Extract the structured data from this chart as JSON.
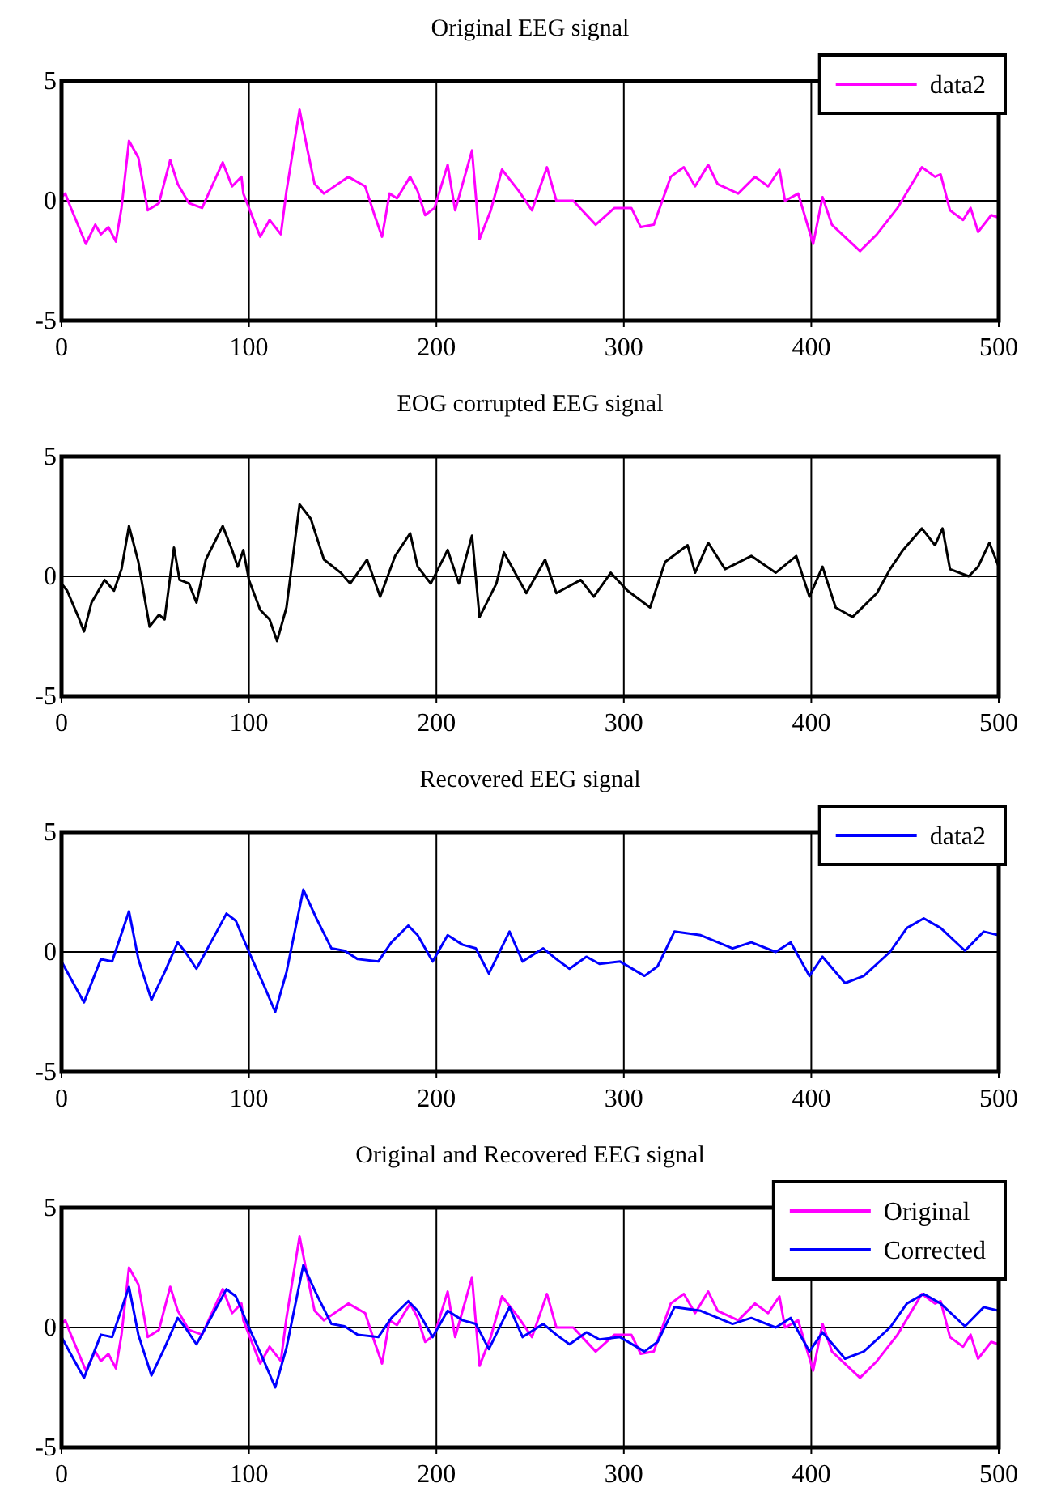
{
  "chart_data": [
    {
      "type": "line",
      "title": "Original EEG signal",
      "xlim": [
        0,
        500
      ],
      "ylim": [
        -5,
        5
      ],
      "xticks": [
        0,
        100,
        200,
        300,
        400,
        500
      ],
      "yticks": [
        -5,
        0,
        5
      ],
      "grid": true,
      "legend": "top right",
      "series": [
        {
          "name": "data2",
          "color": "#ff00ff",
          "x": [
            0,
            2,
            5,
            13,
            18,
            21,
            25,
            29,
            32,
            36,
            41,
            46,
            52,
            58,
            62,
            68,
            75,
            86,
            91,
            96,
            97,
            100,
            106,
            111,
            117,
            120,
            127,
            131,
            135,
            140,
            153,
            162,
            167,
            171,
            175,
            179,
            186,
            190,
            194,
            199,
            206,
            210,
            219,
            223,
            229,
            235,
            244,
            251,
            259,
            264,
            273,
            285,
            295,
            304,
            309,
            316,
            325,
            332,
            338,
            345,
            350,
            361,
            370,
            377,
            383,
            386,
            393,
            401,
            406,
            411,
            426,
            435,
            446,
            459,
            466,
            469,
            474,
            481,
            485,
            489,
            496,
            500
          ],
          "values": [
            0.15,
            0.3,
            -0.3,
            -1.8,
            -1.0,
            -1.4,
            -1.1,
            -1.7,
            -0.3,
            2.5,
            1.8,
            -0.4,
            -0.1,
            1.7,
            0.7,
            -0.1,
            -0.3,
            1.6,
            0.6,
            1.0,
            0.3,
            -0.3,
            -1.5,
            -0.8,
            -1.4,
            0.4,
            3.8,
            2.2,
            0.7,
            0.3,
            1.0,
            0.6,
            -0.6,
            -1.5,
            0.3,
            0.1,
            1.0,
            0.4,
            -0.6,
            -0.3,
            1.5,
            -0.4,
            2.1,
            -1.6,
            -0.4,
            1.3,
            0.4,
            -0.4,
            1.4,
            0,
            0,
            -1.0,
            -0.3,
            -0.3,
            -1.1,
            -1.0,
            1.0,
            1.4,
            0.6,
            1.5,
            0.7,
            0.3,
            1.0,
            0.6,
            1.3,
            0,
            0.3,
            -1.8,
            0.15,
            -1.0,
            -2.1,
            -1.4,
            -0.3,
            1.4,
            1.0,
            1.1,
            -0.4,
            -0.8,
            -0.3,
            -1.3,
            -0.6,
            -0.7
          ]
        }
      ]
    },
    {
      "type": "line",
      "title": "EOG corrupted EEG signal",
      "xlim": [
        0,
        500
      ],
      "ylim": [
        -5,
        5
      ],
      "xticks": [
        0,
        100,
        200,
        300,
        400,
        500
      ],
      "yticks": [
        -5,
        0,
        5
      ],
      "grid": true,
      "series": [
        {
          "color": "#000000",
          "x": [
            0,
            3,
            9,
            12,
            16,
            23,
            28,
            32,
            36,
            41,
            47,
            52,
            55,
            60,
            63,
            68,
            72,
            77,
            86,
            91,
            94,
            97,
            100,
            106,
            111,
            115,
            120,
            127,
            133,
            140,
            149,
            154,
            163,
            170,
            178,
            186,
            190,
            197,
            206,
            212,
            219,
            223,
            232,
            236,
            248,
            258,
            264,
            277,
            284,
            293,
            302,
            314,
            322,
            334,
            338,
            345,
            354,
            368,
            381,
            392,
            399,
            406,
            413,
            422,
            435,
            442,
            449,
            459,
            466,
            470,
            474,
            484,
            489,
            495,
            500
          ],
          "values": [
            -0.3,
            -0.6,
            -1.7,
            -2.3,
            -1.1,
            -0.15,
            -0.6,
            0.3,
            2.1,
            0.6,
            -2.1,
            -1.6,
            -1.8,
            1.2,
            -0.15,
            -0.3,
            -1.1,
            0.7,
            2.1,
            1.1,
            0.4,
            1.1,
            -0.15,
            -1.4,
            -1.8,
            -2.7,
            -1.3,
            3.0,
            2.4,
            0.7,
            0.15,
            -0.3,
            0.7,
            -0.85,
            0.85,
            1.8,
            0.4,
            -0.3,
            1.1,
            -0.3,
            1.7,
            -1.7,
            -0.3,
            1.0,
            -0.7,
            0.7,
            -0.7,
            -0.15,
            -0.85,
            0.15,
            -0.6,
            -1.3,
            0.6,
            1.3,
            0.15,
            1.4,
            0.3,
            0.85,
            0.15,
            0.85,
            -0.85,
            0.4,
            -1.3,
            -1.7,
            -0.7,
            0.3,
            1.1,
            2.0,
            1.3,
            2.0,
            0.3,
            0,
            0.4,
            1.4,
            0.4
          ]
        }
      ]
    },
    {
      "type": "line",
      "title": "Recovered EEG signal",
      "xlim": [
        0,
        500
      ],
      "ylim": [
        -5,
        5
      ],
      "xticks": [
        0,
        100,
        200,
        300,
        400,
        500
      ],
      "yticks": [
        -5,
        0,
        5
      ],
      "grid": true,
      "legend": "top right",
      "series": [
        {
          "name": "data2",
          "color": "#0000ff",
          "x": [
            0,
            7,
            12,
            21,
            27,
            36,
            41,
            48,
            55,
            62,
            66,
            72,
            79,
            88,
            93,
            100,
            108,
            114,
            120,
            129,
            136,
            144,
            151,
            158,
            169,
            176,
            185,
            190,
            198,
            206,
            214,
            221,
            228,
            239,
            246,
            257,
            264,
            271,
            280,
            287,
            298,
            311,
            318,
            327,
            341,
            358,
            368,
            381,
            389,
            399,
            406,
            418,
            428,
            442,
            451,
            460,
            469,
            482,
            492,
            500
          ],
          "values": [
            -0.4,
            -1.4,
            -2.1,
            -0.3,
            -0.4,
            1.7,
            -0.3,
            -2.0,
            -0.85,
            0.4,
            0,
            -0.7,
            0.3,
            1.6,
            1.3,
            0,
            -1.4,
            -2.5,
            -0.85,
            2.6,
            1.4,
            0.15,
            0.05,
            -0.3,
            -0.4,
            0.4,
            1.1,
            0.7,
            -0.4,
            0.7,
            0.3,
            0.15,
            -0.9,
            0.85,
            -0.4,
            0.15,
            -0.3,
            -0.7,
            -0.2,
            -0.5,
            -0.4,
            -1.0,
            -0.6,
            0.85,
            0.7,
            0.15,
            0.4,
            0,
            0.4,
            -1.0,
            -0.2,
            -1.3,
            -1.0,
            0,
            1.0,
            1.4,
            1.0,
            0.05,
            0.85,
            0.7
          ]
        }
      ]
    },
    {
      "type": "line",
      "title": "Original and Recovered EEG signal",
      "xlim": [
        0,
        500
      ],
      "ylim": [
        -5,
        5
      ],
      "xticks": [
        0,
        100,
        200,
        300,
        400,
        500
      ],
      "yticks": [
        -5,
        0,
        5
      ],
      "grid": true,
      "legend": "top right",
      "series": [
        {
          "name": "Original",
          "color": "#ff00ff",
          "x": [
            0,
            2,
            5,
            13,
            18,
            21,
            25,
            29,
            32,
            36,
            41,
            46,
            52,
            58,
            62,
            68,
            75,
            86,
            91,
            96,
            97,
            100,
            106,
            111,
            117,
            120,
            127,
            131,
            135,
            140,
            153,
            162,
            167,
            171,
            175,
            179,
            186,
            190,
            194,
            199,
            206,
            210,
            219,
            223,
            229,
            235,
            244,
            251,
            259,
            264,
            273,
            285,
            295,
            304,
            309,
            316,
            325,
            332,
            338,
            345,
            350,
            361,
            370,
            377,
            383,
            386,
            393,
            401,
            406,
            411,
            426,
            435,
            446,
            459,
            466,
            469,
            474,
            481,
            485,
            489,
            496,
            500
          ],
          "values": [
            0.15,
            0.3,
            -0.3,
            -1.8,
            -1.0,
            -1.4,
            -1.1,
            -1.7,
            -0.3,
            2.5,
            1.8,
            -0.4,
            -0.1,
            1.7,
            0.7,
            -0.1,
            -0.3,
            1.6,
            0.6,
            1.0,
            0.3,
            -0.3,
            -1.5,
            -0.8,
            -1.4,
            0.4,
            3.8,
            2.2,
            0.7,
            0.3,
            1.0,
            0.6,
            -0.6,
            -1.5,
            0.3,
            0.1,
            1.0,
            0.4,
            -0.6,
            -0.3,
            1.5,
            -0.4,
            2.1,
            -1.6,
            -0.4,
            1.3,
            0.4,
            -0.4,
            1.4,
            0,
            0,
            -1.0,
            -0.3,
            -0.3,
            -1.1,
            -1.0,
            1.0,
            1.4,
            0.6,
            1.5,
            0.7,
            0.3,
            1.0,
            0.6,
            1.3,
            0,
            0.3,
            -1.8,
            0.15,
            -1.0,
            -2.1,
            -1.4,
            -0.3,
            1.4,
            1.0,
            1.1,
            -0.4,
            -0.8,
            -0.3,
            -1.3,
            -0.6,
            -0.7
          ]
        },
        {
          "name": "Corrected",
          "color": "#0000ff",
          "x": [
            0,
            7,
            12,
            21,
            27,
            36,
            41,
            48,
            55,
            62,
            66,
            72,
            79,
            88,
            93,
            100,
            108,
            114,
            120,
            129,
            136,
            144,
            151,
            158,
            169,
            176,
            185,
            190,
            198,
            206,
            214,
            221,
            228,
            239,
            246,
            257,
            264,
            271,
            280,
            287,
            298,
            311,
            318,
            327,
            341,
            358,
            368,
            381,
            389,
            399,
            406,
            418,
            428,
            442,
            451,
            460,
            469,
            482,
            492,
            500
          ],
          "values": [
            -0.4,
            -1.4,
            -2.1,
            -0.3,
            -0.4,
            1.7,
            -0.3,
            -2.0,
            -0.85,
            0.4,
            0,
            -0.7,
            0.3,
            1.6,
            1.3,
            0,
            -1.4,
            -2.5,
            -0.85,
            2.6,
            1.4,
            0.15,
            0.05,
            -0.3,
            -0.4,
            0.4,
            1.1,
            0.7,
            -0.4,
            0.7,
            0.3,
            0.15,
            -0.9,
            0.85,
            -0.4,
            0.15,
            -0.3,
            -0.7,
            -0.2,
            -0.5,
            -0.4,
            -1.0,
            -0.6,
            0.85,
            0.7,
            0.15,
            0.4,
            0,
            0.4,
            -1.0,
            -0.2,
            -1.3,
            -1.0,
            0,
            1.0,
            1.4,
            1.0,
            0.05,
            0.85,
            0.7
          ]
        }
      ]
    }
  ]
}
